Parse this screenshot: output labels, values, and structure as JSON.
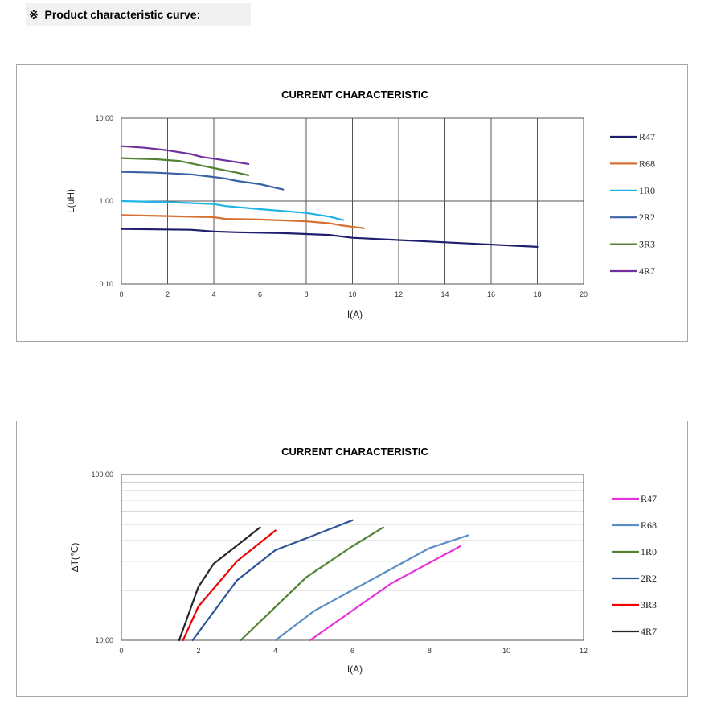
{
  "heading": {
    "symbol": "※",
    "text": "Product characteristic curve:"
  },
  "chart_data": [
    {
      "type": "line",
      "title": "CURRENT CHARACTERISTIC",
      "xlabel": "I(A)",
      "ylabel": "L(uH)",
      "yscale": "log",
      "xlim": [
        0,
        20
      ],
      "ylim": [
        0.1,
        10
      ],
      "xticks": [
        "0",
        "2",
        "4",
        "6",
        "8",
        "10",
        "12",
        "14",
        "16",
        "18",
        "20"
      ],
      "yticks": [
        "0.10",
        "1.00",
        "10.00"
      ],
      "grid": true,
      "legend_position": "right",
      "series": [
        {
          "name": "R47",
          "color": "#1f1f6e",
          "x": [
            0,
            3,
            4,
            5,
            7,
            9,
            10,
            18
          ],
          "y": [
            0.46,
            0.45,
            0.43,
            0.42,
            0.41,
            0.39,
            0.36,
            0.28
          ]
        },
        {
          "name": "R68",
          "color": "#d77032",
          "x": [
            0,
            2,
            4,
            4.5,
            6,
            8,
            9,
            9.5,
            10.5
          ],
          "y": [
            0.68,
            0.66,
            0.64,
            0.61,
            0.6,
            0.57,
            0.54,
            0.51,
            0.47
          ]
        },
        {
          "name": "1R0",
          "color": "#1eb4e6",
          "x": [
            0,
            2,
            4,
            4.5,
            6,
            8,
            9,
            9.6
          ],
          "y": [
            1.0,
            0.97,
            0.92,
            0.87,
            0.8,
            0.72,
            0.65,
            0.59
          ]
        },
        {
          "name": "2R2",
          "color": "#3a62a6",
          "x": [
            0,
            1.5,
            3,
            4,
            4.5,
            5,
            6,
            7
          ],
          "y": [
            2.25,
            2.2,
            2.1,
            1.95,
            1.87,
            1.75,
            1.6,
            1.38
          ]
        },
        {
          "name": "3R3",
          "color": "#548235",
          "x": [
            0,
            1.5,
            2.5,
            4,
            5,
            5.5
          ],
          "y": [
            3.3,
            3.2,
            3.05,
            2.5,
            2.2,
            2.05
          ]
        },
        {
          "name": "4R7",
          "color": "#7030a0",
          "x": [
            0,
            1,
            2,
            3,
            3.5,
            4,
            5,
            5.5
          ],
          "y": [
            4.6,
            4.4,
            4.1,
            3.7,
            3.4,
            3.25,
            2.95,
            2.8
          ]
        }
      ]
    },
    {
      "type": "line",
      "title": "CURRENT CHARACTERISTIC",
      "xlabel": "I(A)",
      "ylabel": "ΔT(℃)",
      "yscale": "log",
      "xlim": [
        0,
        12
      ],
      "ylim": [
        10,
        100
      ],
      "xticks": [
        "0",
        "2",
        "4",
        "6",
        "8",
        "10",
        "12"
      ],
      "yticks": [
        "10.00",
        "100.00"
      ],
      "grid": true,
      "legend_position": "right",
      "series": [
        {
          "name": "R47",
          "color": "#e633d9",
          "x": [
            4.9,
            7,
            8.8
          ],
          "y": [
            10,
            22,
            37
          ]
        },
        {
          "name": "R68",
          "color": "#5b8fc4",
          "x": [
            4,
            5,
            8,
            9
          ],
          "y": [
            10,
            15,
            36,
            43
          ]
        },
        {
          "name": "1R0",
          "color": "#548235",
          "x": [
            3.1,
            4.8,
            6,
            6.8
          ],
          "y": [
            10,
            24,
            37,
            48
          ]
        },
        {
          "name": "2R2",
          "color": "#2e5597",
          "x": [
            1.85,
            3,
            4,
            5,
            6
          ],
          "y": [
            10,
            23,
            35,
            43,
            53
          ]
        },
        {
          "name": "3R3",
          "color": "#ee0000",
          "x": [
            1.6,
            2,
            3,
            4
          ],
          "y": [
            10,
            16,
            30,
            46
          ]
        },
        {
          "name": "4R7",
          "color": "#262626",
          "x": [
            1.5,
            2,
            2.4,
            3.6
          ],
          "y": [
            10,
            21,
            29,
            48
          ]
        }
      ]
    }
  ]
}
